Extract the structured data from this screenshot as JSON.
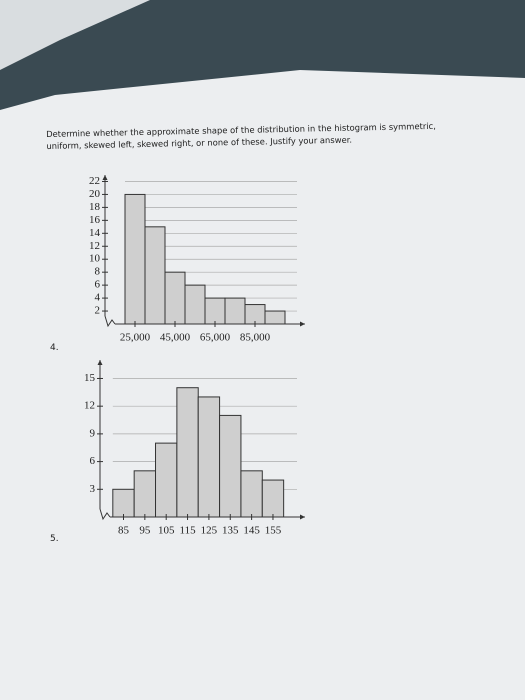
{
  "question": "Determine whether the approximate shape of the distribution in the histogram is symmetric, uniform, skewed left, skewed right, or none of these. Justify your answer.",
  "problems": [
    "4.",
    "5."
  ],
  "chart_data": [
    {
      "type": "histogram",
      "bins": [
        20000,
        30000,
        40000,
        50000,
        60000,
        70000,
        80000,
        90000,
        100000
      ],
      "values": [
        20,
        15,
        8,
        6,
        4,
        4,
        3,
        2
      ],
      "color": "#cfcfcf",
      "xlim": [
        10000,
        110000
      ],
      "ylim": [
        0,
        23
      ],
      "xticks": [
        {
          "value": 25000,
          "label": "25,000"
        },
        {
          "value": 45000,
          "label": "45,000"
        },
        {
          "value": 65000,
          "label": "65,000"
        },
        {
          "value": 85000,
          "label": "85,000"
        }
      ],
      "yticks": [
        2,
        4,
        6,
        8,
        10,
        12,
        14,
        16,
        18,
        20,
        22
      ],
      "grid": true
    },
    {
      "type": "histogram",
      "bins": [
        80,
        90,
        100,
        110,
        120,
        130,
        140,
        150,
        160
      ],
      "values": [
        3,
        5,
        8,
        14,
        13,
        11,
        5,
        4
      ],
      "color": "#cfcfcf",
      "xlim": [
        74,
        170
      ],
      "ylim": [
        0,
        17
      ],
      "xticks": [
        85,
        95,
        105,
        115,
        125,
        135,
        145,
        155
      ],
      "yticks": [
        3,
        6,
        9,
        12,
        15
      ],
      "grid": true
    }
  ]
}
